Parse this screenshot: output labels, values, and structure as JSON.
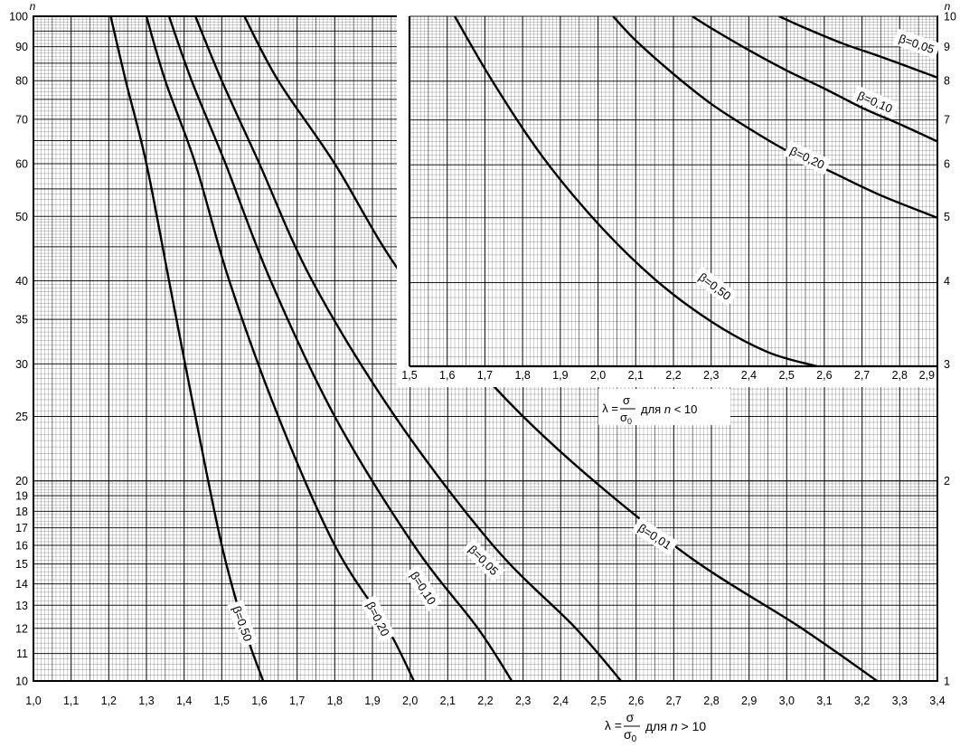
{
  "chart_data": [
    {
      "type": "line",
      "xlabel": {
        "lambda": "λ =",
        "frac_num": "σ",
        "frac_den_sigma": "σ",
        "frac_den_sub": "0",
        "condition": "для",
        "var": "n",
        "rel": "> 10"
      },
      "ylabel": "n",
      "xlim": [
        1.0,
        3.4
      ],
      "ylim": [
        10,
        100
      ],
      "y_scale": "log",
      "grid": true,
      "x_ticks": [
        "1,0",
        "1,1",
        "1,2",
        "1,3",
        "1,4",
        "1,5",
        "1,6",
        "1,7",
        "1,8",
        "1,9",
        "2,0",
        "2,1",
        "2,2",
        "2,3",
        "2,4",
        "2,5",
        "2,6",
        "2,7",
        "2,8",
        "2,9",
        "3,0",
        "3,1",
        "3,2",
        "3,3",
        "3,4"
      ],
      "y_ticks": [
        {
          "v": 10,
          "t": "10"
        },
        {
          "v": 11,
          "t": "11"
        },
        {
          "v": 12,
          "t": "12"
        },
        {
          "v": 13,
          "t": "13"
        },
        {
          "v": 14,
          "t": "14"
        },
        {
          "v": 15,
          "t": "15"
        },
        {
          "v": 16,
          "t": "16"
        },
        {
          "v": 17,
          "t": "17"
        },
        {
          "v": 18,
          "t": "18"
        },
        {
          "v": 19,
          "t": "19"
        },
        {
          "v": 20,
          "t": "20"
        },
        {
          "v": 25,
          "t": "25"
        },
        {
          "v": 30,
          "t": "30"
        },
        {
          "v": 35,
          "t": "35"
        },
        {
          "v": 40,
          "t": "40"
        },
        {
          "v": 50,
          "t": "50"
        },
        {
          "v": 60,
          "t": "60"
        },
        {
          "v": 70,
          "t": "70"
        },
        {
          "v": 80,
          "t": "80"
        },
        {
          "v": 90,
          "t": "90"
        },
        {
          "v": 100,
          "t": "100"
        }
      ],
      "series": [
        {
          "name": "β=0,50",
          "x": [
            1.205,
            1.245,
            1.3,
            1.36,
            1.43,
            1.5,
            1.56,
            1.61
          ],
          "y": [
            100,
            80,
            60,
            40,
            25,
            16,
            12,
            10
          ]
        },
        {
          "name": "β=0,20",
          "x": [
            1.3,
            1.35,
            1.43,
            1.52,
            1.65,
            1.8,
            1.94,
            2.01
          ],
          "y": [
            100,
            80,
            60,
            40,
            25,
            16,
            12,
            10
          ]
        },
        {
          "name": "β=0,10",
          "x": [
            1.36,
            1.42,
            1.51,
            1.63,
            1.8,
            2.01,
            2.18,
            2.27
          ],
          "y": [
            100,
            80,
            60,
            40,
            25,
            16,
            12,
            10
          ]
        },
        {
          "name": "β=0,05",
          "x": [
            1.43,
            1.5,
            1.6,
            1.74,
            1.96,
            2.22,
            2.44,
            2.56
          ],
          "y": [
            100,
            80,
            60,
            40,
            25,
            16,
            12,
            10
          ]
        },
        {
          "name": "β=0,01",
          "x": [
            1.56,
            1.65,
            1.8,
            1.99,
            2.3,
            2.7,
            3.04,
            3.24
          ],
          "y": [
            100,
            80,
            60,
            40,
            25,
            16,
            12,
            10
          ]
        }
      ]
    },
    {
      "type": "line",
      "xlabel": {
        "lambda": "λ =",
        "frac_num": "σ",
        "frac_den_sigma": "σ",
        "frac_den_sub": "0",
        "condition": "для",
        "var": "n",
        "rel": "< 10"
      },
      "ylabel": "n",
      "xlim": [
        1.5,
        2.9
      ],
      "ylim": [
        3,
        10
      ],
      "y_scale": "log",
      "grid": true,
      "x_ticks": [
        "1,5",
        "1,6",
        "1,7",
        "1,8",
        "1,9",
        "2,0",
        "2,1",
        "2,2",
        "2,3",
        "2,4",
        "2,5",
        "2,6",
        "2,7",
        "2,8",
        "2,9"
      ],
      "right_ticks": [
        {
          "v": 1,
          "t": "1"
        },
        {
          "v": 2,
          "t": "2"
        },
        {
          "v": 3,
          "t": "3"
        },
        {
          "v": 4,
          "t": "4"
        },
        {
          "v": 5,
          "t": "5"
        },
        {
          "v": 6,
          "t": "6"
        },
        {
          "v": 7,
          "t": "7"
        },
        {
          "v": 8,
          "t": "8"
        },
        {
          "v": 9,
          "t": "9"
        },
        {
          "v": 10,
          "t": "10"
        }
      ],
      "series": [
        {
          "name": "β=0,50",
          "x": [
            1.62,
            1.72,
            1.85,
            2.0,
            2.15,
            2.3,
            2.45,
            2.58
          ],
          "y": [
            10,
            8.0,
            6.2,
            4.9,
            4.05,
            3.5,
            3.15,
            3.0
          ]
        },
        {
          "name": "β=0,20",
          "x": [
            2.04,
            2.1,
            2.2,
            2.3,
            2.4,
            2.5,
            2.62,
            2.75,
            2.9
          ],
          "y": [
            10,
            9.2,
            8.2,
            7.4,
            6.8,
            6.3,
            5.85,
            5.4,
            5.0
          ]
        },
        {
          "name": "β=0,10",
          "x": [
            2.25,
            2.3,
            2.4,
            2.5,
            2.6,
            2.7,
            2.8,
            2.9
          ],
          "y": [
            10,
            9.6,
            8.9,
            8.3,
            7.8,
            7.3,
            6.9,
            6.5
          ]
        },
        {
          "name": "β=0,05",
          "x": [
            2.48,
            2.55,
            2.65,
            2.75,
            2.9
          ],
          "y": [
            10,
            9.6,
            9.1,
            8.7,
            8.1
          ]
        }
      ]
    }
  ]
}
